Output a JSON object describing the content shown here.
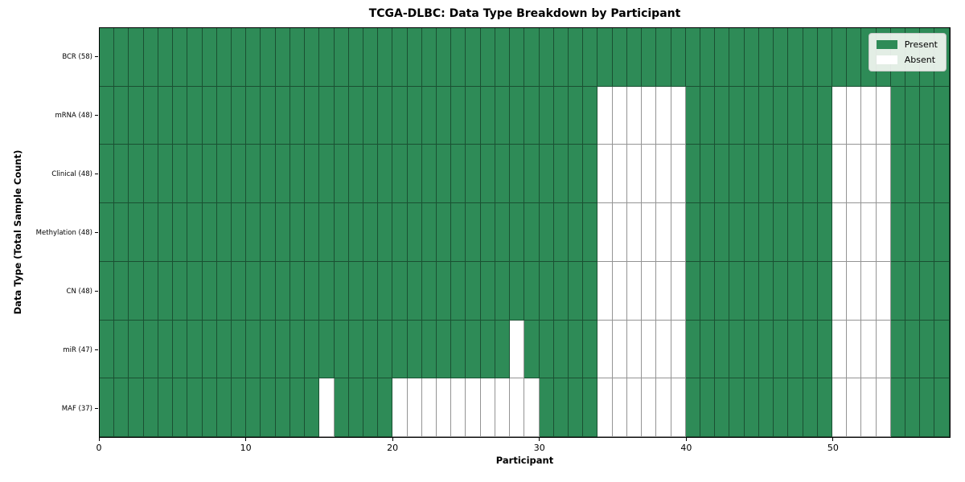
{
  "chart_data": {
    "type": "heatmap",
    "title": "TCGA-DLBC: Data Type Breakdown by Participant",
    "xlabel": "Participant",
    "ylabel": "Data Type (Total Sample Count)",
    "n_participants": 58,
    "x_ticks": [
      0,
      10,
      20,
      30,
      40,
      50
    ],
    "grid": true,
    "colors": {
      "present": "#2E8B57",
      "absent": "#ffffff",
      "cell_edge": "rgba(0,0,0,0.42)"
    },
    "legend": {
      "position": "upper right",
      "entries": [
        {
          "label": "Present",
          "color": "#2E8B57"
        },
        {
          "label": "Absent",
          "color": "#ffffff"
        }
      ]
    },
    "rows": [
      {
        "key": "bcr",
        "data_type": "BCR",
        "total_samples": 58,
        "label": "BCR (58)",
        "absent_participants": []
      },
      {
        "key": "mrna",
        "data_type": "mRNA",
        "total_samples": 48,
        "label": "mRNA (48)",
        "absent_participants": [
          34,
          35,
          36,
          37,
          38,
          39,
          50,
          51,
          52,
          53
        ]
      },
      {
        "key": "clinical",
        "data_type": "Clinical",
        "total_samples": 48,
        "label": "Clinical (48)",
        "absent_participants": [
          34,
          35,
          36,
          37,
          38,
          39,
          50,
          51,
          52,
          53
        ]
      },
      {
        "key": "methylation",
        "data_type": "Methylation",
        "total_samples": 48,
        "label": "Methylation (48)",
        "absent_participants": [
          34,
          35,
          36,
          37,
          38,
          39,
          50,
          51,
          52,
          53
        ]
      },
      {
        "key": "cn",
        "data_type": "CN",
        "total_samples": 48,
        "label": "CN (48)",
        "absent_participants": [
          34,
          35,
          36,
          37,
          38,
          39,
          50,
          51,
          52,
          53
        ]
      },
      {
        "key": "mir",
        "data_type": "miR",
        "total_samples": 47,
        "label": "miR (47)",
        "absent_participants": [
          28,
          34,
          35,
          36,
          37,
          38,
          39,
          50,
          51,
          52,
          53
        ]
      },
      {
        "key": "maf",
        "data_type": "MAF",
        "total_samples": 37,
        "label": "MAF (37)",
        "absent_participants": [
          15,
          20,
          21,
          22,
          23,
          24,
          25,
          26,
          27,
          28,
          29,
          34,
          35,
          36,
          37,
          38,
          39,
          50,
          51,
          52,
          53
        ]
      }
    ]
  }
}
